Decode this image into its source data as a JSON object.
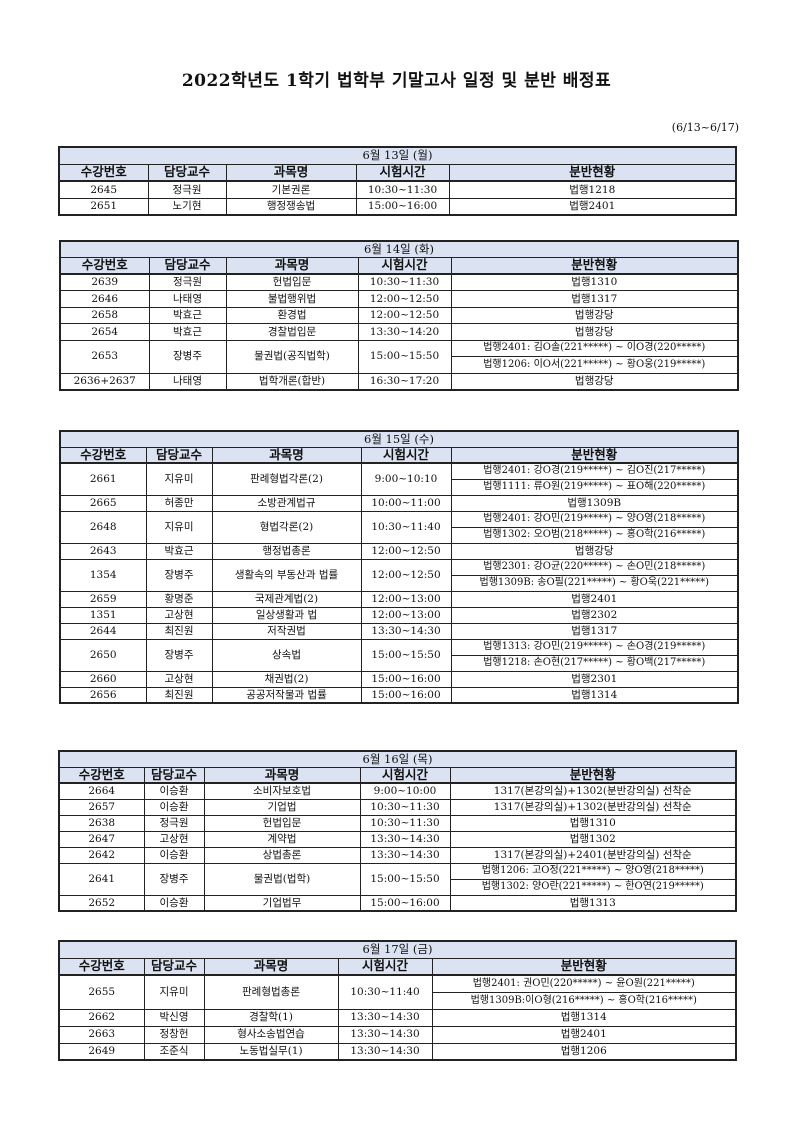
{
  "title": "2022학년도 1학기 법학부 기말고사 일정 및 분반 배정표",
  "date_range": "(6/13~6/17)",
  "columns": [
    "수강번호",
    "담당교수",
    "과목명",
    "시험시간",
    "분반현황"
  ],
  "days": [
    {
      "label": "6월 13일 (월)",
      "rows": [
        {
          "code": "2645",
          "prof": "정극원",
          "course": "기본권론",
          "time": "10:30~11:30",
          "rooms": [
            "법행1218"
          ]
        },
        {
          "code": "2651",
          "prof": "노기현",
          "course": "행정쟁송법",
          "time": "15:00~16:00",
          "rooms": [
            "법행2401"
          ]
        }
      ]
    },
    {
      "label": "6월 14일 (화)",
      "rows": [
        {
          "code": "2639",
          "prof": "정극원",
          "course": "헌법입문",
          "time": "10:30~11:30",
          "rooms": [
            "법행1310"
          ]
        },
        {
          "code": "2646",
          "prof": "나태영",
          "course": "불법행위법",
          "time": "12:00~12:50",
          "rooms": [
            "법행1317"
          ]
        },
        {
          "code": "2658",
          "prof": "박효근",
          "course": "환경법",
          "time": "12:00~12:50",
          "rooms": [
            "법행강당"
          ]
        },
        {
          "code": "2654",
          "prof": "박효근",
          "course": "경찰법입문",
          "time": "13:30~14:20",
          "rooms": [
            "법행강당"
          ]
        },
        {
          "code": "2653",
          "prof": "장병주",
          "course": "물권법(공직법학)",
          "time": "15:00~15:50",
          "rooms": [
            "법행2401: 김O솔(221*****) ~ 이O경(220*****)",
            "법행1206: 이O서(221*****) ~ 황O웅(219*****)"
          ]
        },
        {
          "code": "2636+2637",
          "prof": "나태영",
          "course": "법학개론(합반)",
          "time": "16:30~17:20",
          "rooms": [
            "법행강당"
          ]
        }
      ]
    },
    {
      "label": "6월 15일 (수)",
      "rows": [
        {
          "code": "2661",
          "prof": "지유미",
          "course": "판례형법각론(2)",
          "time": "9:00~10:10",
          "rooms": [
            "법행2401: 강O경(219*****) ~ 김O진(217*****)",
            "법행1111: 류O원(219*****) ~ 표O해(220*****)"
          ]
        },
        {
          "code": "2665",
          "prof": "허종만",
          "course": "소방관계법규",
          "time": "10:00~11:00",
          "rooms": [
            "법행1309B"
          ]
        },
        {
          "code": "2648",
          "prof": "지유미",
          "course": "형법각론(2)",
          "time": "10:30~11:40",
          "rooms": [
            "법행2401: 강O민(219*****) ~ 양O영(218*****)",
            "법행1302: 오O범(218*****) ~ 홍O학(216*****)"
          ]
        },
        {
          "code": "2643",
          "prof": "박효근",
          "course": "행정법총론",
          "time": "12:00~12:50",
          "rooms": [
            "법행강당"
          ]
        },
        {
          "code": "1354",
          "prof": "장병주",
          "course": "생활속의 부동산과 법률",
          "time": "12:00~12:50",
          "rooms": [
            "법행2301: 강O균(220*****) ~ 손O민(218*****)",
            "법행1309B: 송O필(221*****) ~ 황O욱(221*****)"
          ]
        },
        {
          "code": "2659",
          "prof": "황명준",
          "course": "국제관계법(2)",
          "time": "12:00~13:00",
          "rooms": [
            "법행2401"
          ]
        },
        {
          "code": "1351",
          "prof": "고상현",
          "course": "일상생활과 법",
          "time": "12:00~13:00",
          "rooms": [
            "법행2302"
          ]
        },
        {
          "code": "2644",
          "prof": "최진원",
          "course": "저작권법",
          "time": "13:30~14:30",
          "rooms": [
            "법행1317"
          ]
        },
        {
          "code": "2650",
          "prof": "장병주",
          "course": "상속법",
          "time": "15:00~15:50",
          "rooms": [
            "법행1313: 강O민(219*****) ~ 손O경(219*****)",
            "법행1218: 손O현(217*****) ~ 황O백(217*****)"
          ]
        },
        {
          "code": "2660",
          "prof": "고상현",
          "course": "채권법(2)",
          "time": "15:00~16:00",
          "rooms": [
            "법행2301"
          ]
        },
        {
          "code": "2656",
          "prof": "최진원",
          "course": "공공저작물과 법률",
          "time": "15:00~16:00",
          "rooms": [
            "법행1314"
          ]
        }
      ]
    },
    {
      "label": "6월 16일 (목)",
      "rows": [
        {
          "code": "2664",
          "prof": "이승환",
          "course": "소비자보호법",
          "time": "9:00~10:00",
          "rooms": [
            "1317(본강의실)+1302(분반강의실) 선착순"
          ]
        },
        {
          "code": "2657",
          "prof": "이승환",
          "course": "기업법",
          "time": "10:30~11:30",
          "rooms": [
            "1317(본강의실)+1302(분반강의실) 선착순"
          ]
        },
        {
          "code": "2638",
          "prof": "정극원",
          "course": "헌법입문",
          "time": "10:30~11:30",
          "rooms": [
            "법행1310"
          ]
        },
        {
          "code": "2647",
          "prof": "고상현",
          "course": "계약법",
          "time": "13:30~14:30",
          "rooms": [
            "법행1302"
          ]
        },
        {
          "code": "2642",
          "prof": "이승환",
          "course": "상법총론",
          "time": "13:30~14:30",
          "rooms": [
            "1317(본강의실)+2401(분반강의실) 선착순"
          ]
        },
        {
          "code": "2641",
          "prof": "장병주",
          "course": "물권법(법학)",
          "time": "15:00~15:50",
          "rooms": [
            "법행1206: 고O정(221*****) ~ 양O영(218*****)",
            "법행1302: 양O란(221*****) ~ 한O연(219*****)"
          ]
        },
        {
          "code": "2652",
          "prof": "이승환",
          "course": "기업법무",
          "time": "15:00~16:00",
          "rooms": [
            "법행1313"
          ]
        }
      ]
    },
    {
      "label": "6월 17일 (금)",
      "rows": [
        {
          "code": "2655",
          "prof": "지유미",
          "course": "판례형법총론",
          "time": "10:30~11:40",
          "rooms": [
            "법행2401: 권O민(220*****) ~ 윤O원(221*****)",
            "법행1309B:이O형(216*****) ~ 홍O학(216*****)"
          ]
        },
        {
          "code": "2662",
          "prof": "박신영",
          "course": "경찰학(1)",
          "time": "13:30~14:30",
          "rooms": [
            "법행1314"
          ]
        },
        {
          "code": "2663",
          "prof": "정창헌",
          "course": "형사소송법연습",
          "time": "13:30~14:30",
          "rooms": [
            "법행2401"
          ]
        },
        {
          "code": "2649",
          "prof": "조준식",
          "course": "노동법실무(1)",
          "time": "13:30~14:30",
          "rooms": [
            "법행1206"
          ]
        }
      ]
    }
  ]
}
